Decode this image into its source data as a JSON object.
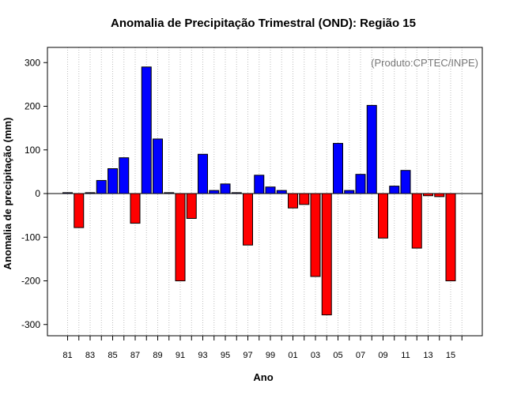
{
  "chart_data": {
    "type": "bar",
    "title": "Anomalia de Precipitação Trimestral (OND): Região 15",
    "source_note": "(Produto:CPTEC/INPE)",
    "xlabel": "Ano",
    "ylabel": "Anomalia de precipitação (mm)",
    "ylim": [
      -330,
      340
    ],
    "yticks": [
      -300,
      -200,
      -100,
      0,
      100,
      200,
      300
    ],
    "tick_labels": [
      "81",
      "83",
      "85",
      "87",
      "89",
      "91",
      "93",
      "95",
      "97",
      "99",
      "01",
      "03",
      "05",
      "07",
      "09",
      "11",
      "13",
      "15"
    ],
    "years": [
      1981,
      1982,
      1983,
      1984,
      1985,
      1986,
      1987,
      1988,
      1989,
      1990,
      1991,
      1992,
      1993,
      1994,
      1995,
      1996,
      1997,
      1998,
      1999,
      2000,
      2001,
      2002,
      2003,
      2004,
      2005,
      2006,
      2007,
      2008,
      2009,
      2010,
      2011,
      2012,
      2013,
      2014,
      2015
    ],
    "values": [
      2,
      -78,
      2,
      30,
      57,
      82,
      -68,
      290,
      125,
      2,
      -200,
      -57,
      90,
      7,
      22,
      2,
      -118,
      42,
      15,
      7,
      -33,
      -25,
      -190,
      -278,
      115,
      7,
      44,
      202,
      -102,
      17,
      53,
      -125,
      -5,
      -7,
      -200
    ],
    "colors": {
      "positive": "#0000ff",
      "negative": "#ff0000"
    },
    "grid": "vertical-dotted",
    "zero_line": true
  }
}
